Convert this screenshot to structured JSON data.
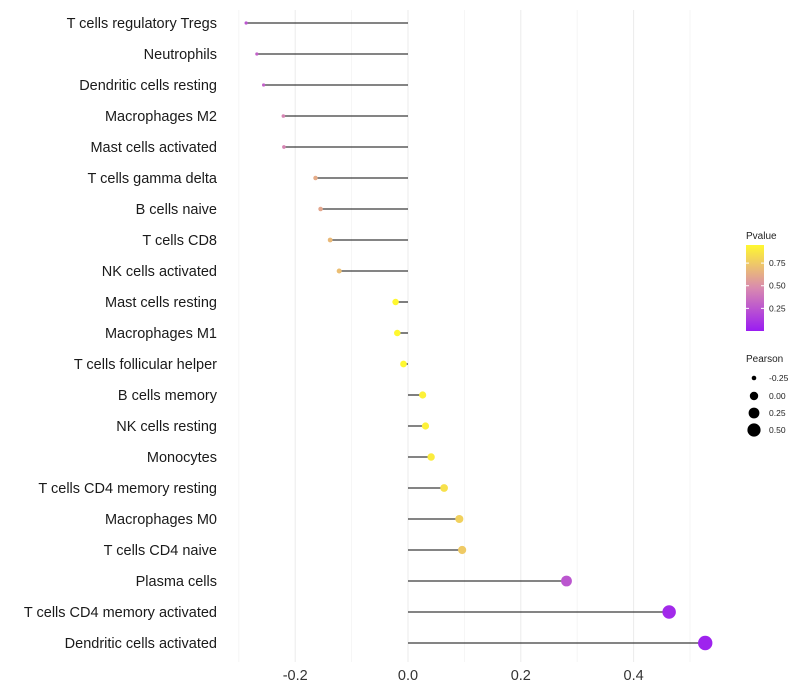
{
  "chart_data": {
    "type": "lollipop",
    "title": "",
    "xlabel": "",
    "ylabel": "",
    "xlim": [
      -0.3,
      0.53
    ],
    "x_ticks": [
      -0.2,
      0.0,
      0.2,
      0.4
    ],
    "x_tick_labels": [
      "-0.2",
      "0.0",
      "0.2",
      "0.4"
    ],
    "grid": true,
    "legend_placement": "right",
    "categories": [
      "T cells regulatory  Tregs",
      "Neutrophils",
      "Dendritic cells resting",
      "Macrophages M2",
      "Mast cells activated",
      "T cells gamma delta",
      "B cells naive",
      "T cells CD8",
      "NK cells activated",
      "Mast cells resting",
      "Macrophages M1",
      "T cells follicular helper",
      "B cells memory",
      "NK cells resting",
      "Monocytes",
      "T cells CD4 memory resting",
      "Macrophages M0",
      "T cells CD4 naive",
      "Plasma cells",
      "T cells CD4 memory activated",
      "Dendritic cells activated"
    ],
    "pearson": [
      -0.287,
      -0.268,
      -0.256,
      -0.221,
      -0.22,
      -0.164,
      -0.155,
      -0.138,
      -0.122,
      -0.022,
      -0.019,
      -0.008,
      0.026,
      0.031,
      0.041,
      0.064,
      0.091,
      0.096,
      0.281,
      0.463,
      0.527
    ],
    "pvalue": [
      0.25,
      0.3,
      0.3,
      0.45,
      0.45,
      0.62,
      0.6,
      0.68,
      0.7,
      0.96,
      0.96,
      0.97,
      0.92,
      0.92,
      0.9,
      0.85,
      0.78,
      0.75,
      0.25,
      0.06,
      0.03
    ],
    "color_scale": {
      "title": "Pvalue",
      "low_color": "#9A1CF2",
      "mid_color": "#D98AAF",
      "high_color": "#FFF830",
      "range": [
        0.0,
        0.95
      ],
      "ticks": [
        0.25,
        0.5,
        0.75
      ],
      "tick_labels": [
        "0.25",
        "0.50",
        "0.75"
      ]
    },
    "size_scale": {
      "title": "Pearson",
      "values": [
        -0.25,
        0.0,
        0.25,
        0.5
      ],
      "labels": [
        "-0.25",
        "0.00",
        "0.25",
        "0.50"
      ]
    }
  }
}
